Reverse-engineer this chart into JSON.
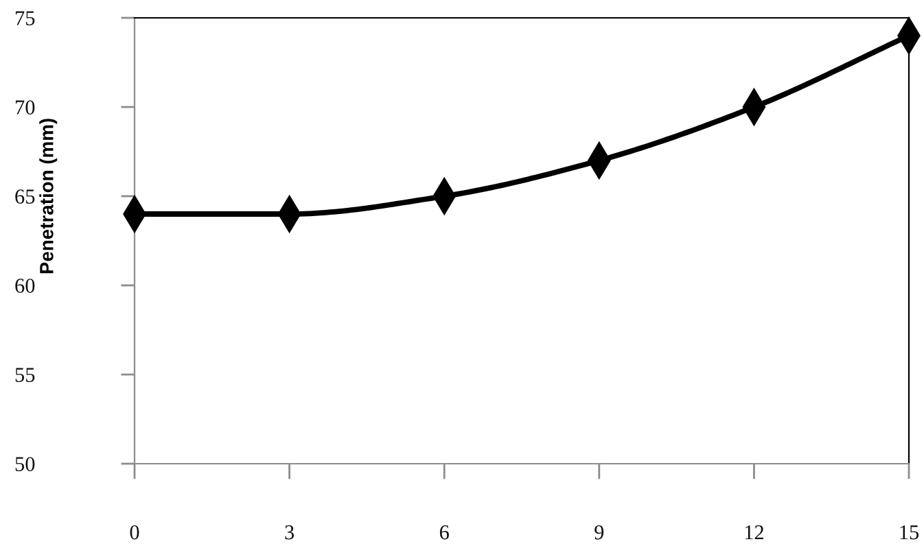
{
  "chart_data": {
    "type": "line",
    "ylabel": "Penetration (mm)",
    "x": [
      0,
      3,
      6,
      9,
      12,
      15
    ],
    "series": [
      {
        "color": "#000000",
        "values": [
          64,
          64,
          65,
          67,
          70,
          74
        ]
      }
    ],
    "xlim": [
      0,
      15
    ],
    "ylim": [
      50,
      75
    ],
    "xticks": [
      0,
      3,
      6,
      9,
      12,
      15
    ],
    "yticks": [
      50,
      55,
      60,
      65,
      70,
      75
    ],
    "marker": "diamond",
    "line_style": "solid"
  }
}
